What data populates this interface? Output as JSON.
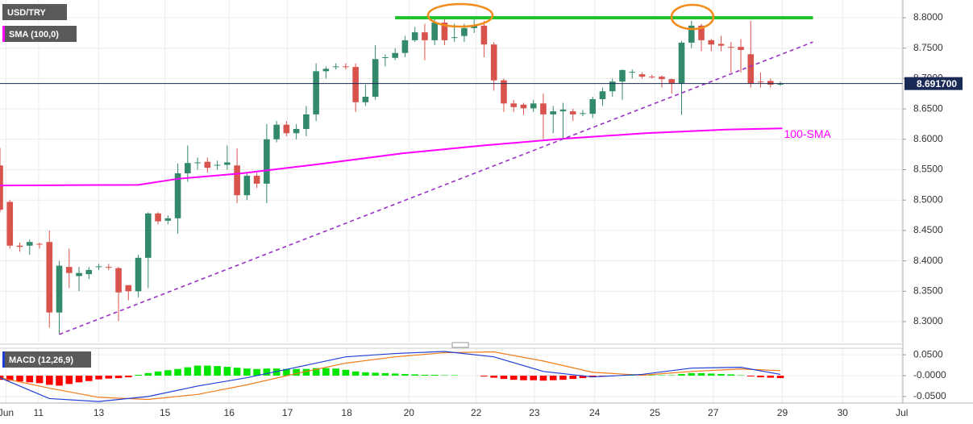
{
  "chart_data": [
    {
      "type": "candlestick",
      "name": "USD/TRY",
      "indicator": "SMA (100,0)",
      "up_color": "#338a6b",
      "down_color": "#d9534d",
      "grid": true,
      "x": [
        0,
        1,
        2,
        3,
        4,
        5,
        6,
        7,
        8,
        9,
        10,
        11,
        12,
        13,
        14,
        15,
        16,
        17,
        18,
        19,
        20,
        21,
        22,
        23,
        24,
        25,
        26,
        27,
        28,
        29,
        30,
        31,
        32,
        33,
        34,
        35,
        36,
        37,
        38,
        39,
        40,
        41,
        42,
        43,
        44,
        45,
        46,
        47,
        48,
        49,
        50,
        51,
        52,
        53,
        54,
        55,
        56,
        57,
        58,
        59,
        60,
        61,
        62,
        63,
        64,
        65,
        66,
        67,
        68,
        69,
        70,
        71,
        72,
        73,
        74,
        75,
        76,
        77,
        78,
        79
      ],
      "open": [
        8.557,
        8.497,
        8.425,
        8.425,
        8.428,
        8.431,
        8.315,
        8.39,
        8.375,
        8.378,
        8.39,
        8.39,
        8.388,
        8.36,
        8.35,
        8.405,
        8.478,
        8.466,
        8.47,
        8.544,
        8.561,
        8.563,
        8.557,
        8.558,
        8.557,
        8.508,
        8.54,
        8.527,
        8.6,
        8.624,
        8.61,
        8.617,
        8.641,
        8.712,
        8.719,
        8.72,
        8.719,
        8.661,
        8.67,
        8.734,
        8.734,
        8.742,
        8.763,
        8.776,
        8.763,
        8.792,
        8.767,
        8.77,
        8.783,
        8.787,
        8.756,
        8.697,
        8.659,
        8.657,
        8.651,
        8.659,
        8.641,
        8.646,
        8.646,
        8.642,
        8.642,
        8.666,
        8.679,
        8.695,
        8.71,
        8.707,
        8.703,
        8.703,
        8.699,
        8.692,
        8.759,
        8.787,
        8.763,
        8.757,
        8.752,
        8.752,
        8.74,
        8.695,
        8.696,
        8.69
      ],
      "high": [
        8.586,
        8.5,
        8.43,
        8.435,
        8.43,
        8.45,
        8.4,
        8.42,
        8.39,
        8.39,
        8.395,
        8.395,
        8.39,
        8.36,
        8.41,
        8.48,
        8.48,
        8.475,
        8.56,
        8.59,
        8.57,
        8.57,
        8.565,
        8.59,
        8.585,
        8.545,
        8.545,
        8.625,
        8.63,
        8.63,
        8.625,
        8.655,
        8.725,
        8.72,
        8.725,
        8.725,
        8.725,
        8.69,
        8.755,
        8.74,
        8.75,
        8.77,
        8.785,
        8.79,
        8.8,
        8.8,
        8.79,
        8.79,
        8.8,
        8.795,
        8.76,
        8.7,
        8.665,
        8.66,
        8.665,
        8.675,
        8.655,
        8.66,
        8.65,
        8.648,
        8.67,
        8.685,
        8.7,
        8.715,
        8.715,
        8.71,
        8.706,
        8.705,
        8.7,
        8.762,
        8.795,
        8.79,
        8.765,
        8.77,
        8.76,
        8.765,
        8.795,
        8.71,
        8.7,
        8.695
      ],
      "low": [
        8.48,
        8.42,
        8.415,
        8.41,
        8.42,
        8.29,
        8.279,
        8.355,
        8.35,
        8.37,
        8.385,
        8.385,
        8.301,
        8.335,
        8.34,
        8.355,
        8.46,
        8.46,
        8.445,
        8.53,
        8.55,
        8.545,
        8.55,
        8.55,
        8.495,
        8.5,
        8.52,
        8.495,
        8.595,
        8.605,
        8.6,
        8.605,
        8.63,
        8.7,
        8.715,
        8.715,
        8.645,
        8.655,
        8.665,
        8.72,
        8.73,
        8.735,
        8.76,
        8.73,
        8.755,
        8.755,
        8.76,
        8.76,
        8.775,
        8.735,
        8.68,
        8.645,
        8.645,
        8.64,
        8.645,
        8.6,
        8.61,
        8.6,
        8.63,
        8.638,
        8.635,
        8.655,
        8.67,
        8.665,
        8.7,
        8.7,
        8.7,
        8.685,
        8.675,
        8.64,
        8.75,
        8.745,
        8.745,
        8.745,
        8.71,
        8.71,
        8.685,
        8.685,
        8.685,
        8.688
      ],
      "close": [
        8.484,
        8.425,
        8.423,
        8.431,
        8.427,
        8.315,
        8.392,
        8.38,
        8.38,
        8.385,
        8.391,
        8.389,
        8.348,
        8.35,
        8.405,
        8.478,
        8.465,
        8.47,
        8.544,
        8.561,
        8.562,
        8.553,
        8.558,
        8.562,
        8.508,
        8.54,
        8.527,
        8.6,
        8.624,
        8.61,
        8.617,
        8.641,
        8.712,
        8.716,
        8.72,
        8.719,
        8.661,
        8.67,
        8.732,
        8.735,
        8.742,
        8.763,
        8.776,
        8.763,
        8.792,
        8.763,
        8.768,
        8.783,
        8.787,
        8.756,
        8.697,
        8.659,
        8.653,
        8.651,
        8.659,
        8.641,
        8.646,
        8.649,
        8.641,
        8.643,
        8.666,
        8.679,
        8.695,
        8.714,
        8.711,
        8.703,
        8.702,
        8.699,
        8.692,
        8.759,
        8.787,
        8.763,
        8.756,
        8.754,
        8.751,
        8.747,
        8.692,
        8.694,
        8.69,
        8.6917
      ],
      "xlim": [
        0,
        91.4
      ],
      "xticks": [
        {
          "value": 0.6,
          "label": "Jun"
        },
        {
          "value": 3.9,
          "label": "11"
        },
        {
          "value": 10.0,
          "label": "13"
        },
        {
          "value": 16.7,
          "label": "15"
        },
        {
          "value": 23.2,
          "label": "16"
        },
        {
          "value": 29.1,
          "label": "17"
        },
        {
          "value": 35.1,
          "label": "18"
        },
        {
          "value": 41.4,
          "label": "20"
        },
        {
          "value": 48.2,
          "label": "22"
        },
        {
          "value": 54.1,
          "label": "23"
        },
        {
          "value": 60.2,
          "label": "24"
        },
        {
          "value": 66.3,
          "label": "25"
        },
        {
          "value": 72.2,
          "label": "27"
        },
        {
          "value": 79.2,
          "label": "29"
        },
        {
          "value": 85.3,
          "label": "30"
        },
        {
          "value": 91.3,
          "label": "Jul"
        }
      ],
      "ylim": [
        8.2655,
        8.8292
      ],
      "yticks": [
        {
          "value": 8.8,
          "label": "8.8000"
        },
        {
          "value": 8.75,
          "label": "8.7500"
        },
        {
          "value": 8.7,
          "label": "8.7000"
        },
        {
          "value": 8.65,
          "label": "8.6500"
        },
        {
          "value": 8.6,
          "label": "8.6000"
        },
        {
          "value": 8.55,
          "label": "8.5500"
        },
        {
          "value": 8.5,
          "label": "8.5000"
        },
        {
          "value": 8.45,
          "label": "8.4500"
        },
        {
          "value": 8.4,
          "label": "8.4000"
        },
        {
          "value": 8.35,
          "label": "8.3500"
        },
        {
          "value": 8.3,
          "label": "8.3000"
        }
      ],
      "last_price": {
        "value": 8.6917,
        "label": "8.691700"
      },
      "sma": {
        "name": "100-SMA",
        "color": "#ff00ff",
        "x": [
          0,
          14,
          18,
          24.5,
          32.7,
          40.8,
          49,
          57.1,
          65.3,
          73.5,
          79.2
        ],
        "values": [
          8.524,
          8.525,
          8.535,
          8.544,
          8.56,
          8.577,
          8.59,
          8.601,
          8.61,
          8.616,
          8.618
        ]
      },
      "resistance": {
        "value": 8.8,
        "x": [
          40,
          82.3
        ],
        "color": "#22c22d"
      },
      "trendline": {
        "x": [
          6,
          82.3
        ],
        "values": [
          8.279,
          8.76
        ],
        "color": "#9b30c8"
      }
    },
    {
      "type": "macd",
      "title": "MACD (12,26,9)",
      "histogram": {
        "positive_color": "#00e600",
        "negative_color": "#ff0000",
        "values": [
          -0.01,
          -0.012,
          -0.014,
          -0.016,
          -0.018,
          -0.022,
          -0.024,
          -0.02,
          -0.016,
          -0.013,
          -0.009,
          -0.007,
          -0.006,
          -0.004,
          0.002,
          0.006,
          0.01,
          0.013,
          0.016,
          0.02,
          0.024,
          0.024,
          0.023,
          0.021,
          0.019,
          0.017,
          0.016,
          0.017,
          0.017,
          0.016,
          0.016,
          0.016,
          0.018,
          0.018,
          0.017,
          0.014,
          0.01,
          0.008,
          0.007,
          0.006,
          0.005,
          0.004,
          0.003,
          0.002,
          0.002,
          0.001,
          0.001,
          0.0,
          0.0,
          -0.002,
          -0.005,
          -0.008,
          -0.01,
          -0.011,
          -0.011,
          -0.012,
          -0.011,
          -0.01,
          -0.008,
          -0.006,
          -0.004,
          -0.002,
          -0.001,
          0.0,
          0.001,
          0.001,
          0.001,
          0.001,
          0.001,
          0.004,
          0.006,
          0.006,
          0.005,
          0.004,
          0.003,
          0.001,
          -0.002,
          -0.004,
          -0.005,
          -0.006
        ]
      },
      "macd": {
        "color": "#1f3fd6",
        "x": [
          0,
          5,
          10,
          15,
          20,
          25,
          30,
          35,
          40,
          45,
          50,
          55,
          60,
          65,
          70,
          75,
          79
        ],
        "values": [
          -0.005,
          -0.055,
          -0.062,
          -0.05,
          -0.025,
          -0.005,
          0.02,
          0.045,
          0.053,
          0.058,
          0.045,
          0.01,
          -0.003,
          0.003,
          0.018,
          0.02,
          0.003
        ]
      },
      "signal": {
        "color": "#f07c1a",
        "x": [
          0,
          5,
          10,
          15,
          20,
          25,
          30,
          35,
          40,
          45,
          50,
          55,
          60,
          65,
          70,
          75,
          79
        ],
        "values": [
          -0.005,
          -0.03,
          -0.052,
          -0.057,
          -0.045,
          -0.022,
          0.005,
          0.03,
          0.045,
          0.055,
          0.057,
          0.035,
          0.008,
          0.001,
          0.01,
          0.016,
          0.012
        ]
      },
      "ylim": [
        -0.0657,
        0.0657
      ],
      "yticks": [
        {
          "value": 0.05,
          "label": "0.0500"
        },
        {
          "value": 0,
          "label": "-0.0000"
        },
        {
          "value": -0.05,
          "label": "-0.0500"
        }
      ]
    }
  ]
}
